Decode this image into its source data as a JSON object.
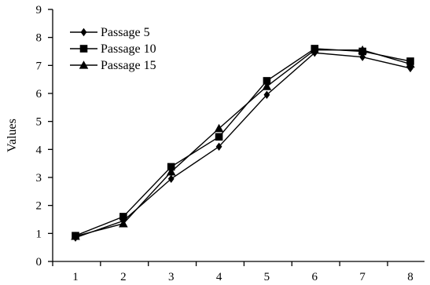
{
  "chart_data": {
    "type": "line",
    "x": [
      1,
      2,
      3,
      4,
      5,
      6,
      7,
      8
    ],
    "xlabel": "",
    "ylabel": "Values",
    "xlim": [
      1,
      8
    ],
    "ylim": [
      0,
      9
    ],
    "yticks": [
      0,
      1,
      2,
      3,
      4,
      5,
      6,
      7,
      8,
      9
    ],
    "xticks": [
      1,
      2,
      3,
      4,
      5,
      6,
      7,
      8
    ],
    "grid": false,
    "legend_position": "top-left",
    "series": [
      {
        "name": "Passage 5",
        "marker": "diamond",
        "color": "#000000",
        "values": [
          0.85,
          1.45,
          2.95,
          4.1,
          5.95,
          7.45,
          7.3,
          6.9
        ]
      },
      {
        "name": "Passage 10",
        "marker": "square",
        "color": "#000000",
        "values": [
          0.92,
          1.6,
          3.38,
          4.45,
          6.45,
          7.6,
          7.5,
          7.15
        ]
      },
      {
        "name": "Passage 15",
        "marker": "triangle",
        "color": "#000000",
        "values": [
          0.9,
          1.35,
          3.2,
          4.75,
          6.25,
          7.55,
          7.55,
          7.05
        ]
      }
    ]
  }
}
